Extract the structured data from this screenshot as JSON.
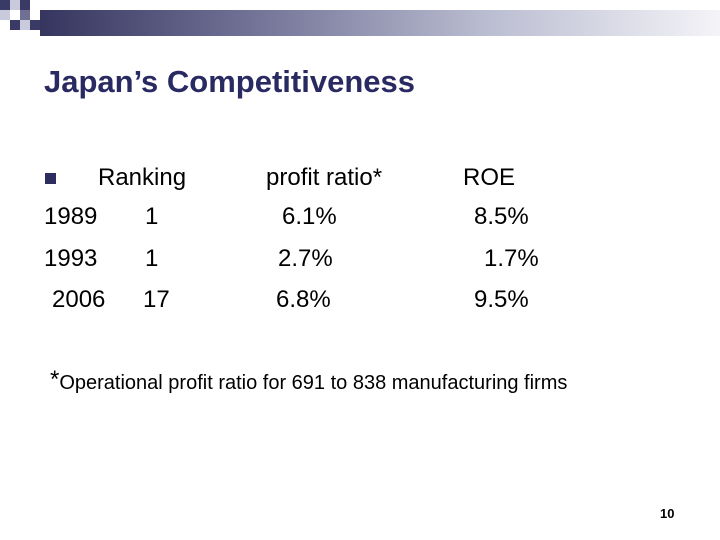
{
  "slide": {
    "title": "Japan’s Competitiveness",
    "header": {
      "ranking": "Ranking",
      "profit_ratio": "profit ratio*",
      "roe": "ROE"
    },
    "rows": [
      {
        "year": "1989",
        "ranking": "1",
        "profit_ratio": "6.1%",
        "roe": "8.5%"
      },
      {
        "year": "1993",
        "ranking": "1",
        "profit_ratio": "2.7%",
        "roe": "1.7%"
      },
      {
        "year": "2006",
        "ranking": "17",
        "profit_ratio": "6.8%",
        "roe": "9.5%"
      }
    ],
    "footnote": {
      "marker": "*",
      "text": "Operational profit ratio for 691 to 838 manufacturing firms"
    },
    "page_number": "10"
  },
  "colors": {
    "title": "#2a2a62",
    "bullet": "#2d2d5f",
    "band_dark": "#35355f",
    "band_light": "#f4f4f8"
  },
  "icons": {
    "bullet": "square-bullet-icon"
  }
}
